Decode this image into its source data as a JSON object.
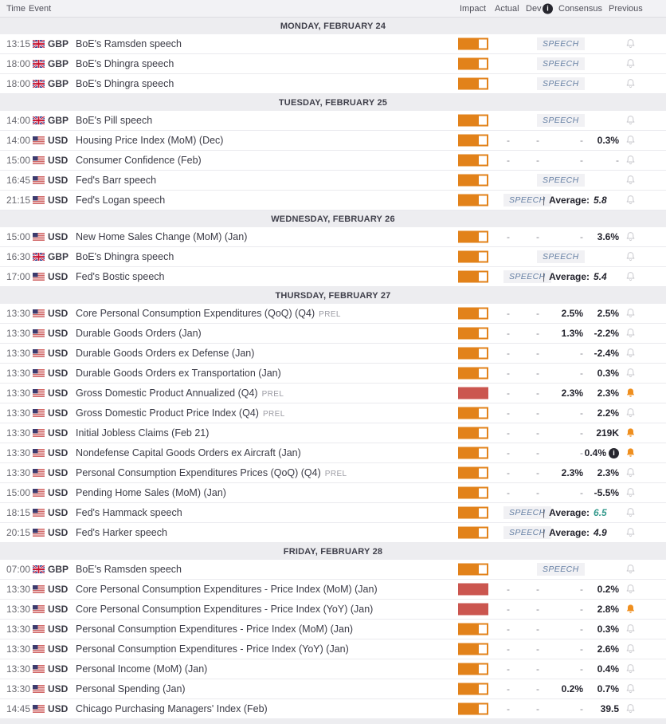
{
  "header": {
    "time": "Time",
    "event": "Event",
    "impact": "Impact",
    "actual": "Actual",
    "dev": "Dev",
    "dev_info_icon": "i",
    "consensus": "Consensus",
    "previous": "Previous"
  },
  "labels": {
    "speech": "SPEECH",
    "average": "Average:",
    "pipe": "|",
    "info_icon": "i"
  },
  "colors": {
    "impact_medium_orange": "#e2821a",
    "impact_high_red": "#cb564f",
    "bell_active_orange": "#ef8f1f",
    "speech_badge_blue": "#6680a4",
    "average_teal": "#359a8d"
  },
  "days": [
    {
      "label": "MONDAY, FEBRUARY 24",
      "rows": [
        {
          "time": "13:15",
          "flag": "gb",
          "currency": "GBP",
          "event": "BoE's Ramsden speech",
          "suffix": "",
          "impact": "medium",
          "kind": "speech",
          "average": "",
          "average_color": "",
          "bell": "gray"
        },
        {
          "time": "18:00",
          "flag": "gb",
          "currency": "GBP",
          "event": "BoE's Dhingra speech",
          "suffix": "",
          "impact": "medium",
          "kind": "speech",
          "average": "",
          "average_color": "",
          "bell": "gray"
        },
        {
          "time": "18:00",
          "flag": "gb",
          "currency": "GBP",
          "event": "BoE's Dhingra speech",
          "suffix": "",
          "impact": "medium",
          "kind": "speech",
          "average": "",
          "average_color": "",
          "bell": "gray"
        }
      ]
    },
    {
      "label": "TUESDAY, FEBRUARY 25",
      "rows": [
        {
          "time": "14:00",
          "flag": "gb",
          "currency": "GBP",
          "event": "BoE's Pill speech",
          "suffix": "",
          "impact": "medium",
          "kind": "speech",
          "average": "",
          "average_color": "",
          "bell": "gray"
        },
        {
          "time": "14:00",
          "flag": "us",
          "currency": "USD",
          "event": "Housing Price Index (MoM) (Dec)",
          "suffix": "",
          "impact": "medium",
          "kind": "data",
          "actual": "-",
          "dev": "-",
          "consensus": "-",
          "previous": "0.3%",
          "previous_info": false,
          "bell": "gray"
        },
        {
          "time": "15:00",
          "flag": "us",
          "currency": "USD",
          "event": "Consumer Confidence (Feb)",
          "suffix": "",
          "impact": "medium",
          "kind": "data",
          "actual": "-",
          "dev": "-",
          "consensus": "-",
          "previous": "-",
          "previous_info": false,
          "bell": "gray"
        },
        {
          "time": "16:45",
          "flag": "us",
          "currency": "USD",
          "event": "Fed's Barr speech",
          "suffix": "",
          "impact": "medium",
          "kind": "speech",
          "average": "",
          "average_color": "",
          "bell": "gray"
        },
        {
          "time": "21:15",
          "flag": "us",
          "currency": "USD",
          "event": "Fed's Logan speech",
          "suffix": "",
          "impact": "medium",
          "kind": "speech",
          "average": "5.8",
          "average_color": "",
          "bell": "gray"
        }
      ]
    },
    {
      "label": "WEDNESDAY, FEBRUARY 26",
      "rows": [
        {
          "time": "15:00",
          "flag": "us",
          "currency": "USD",
          "event": "New Home Sales Change (MoM) (Jan)",
          "suffix": "",
          "impact": "medium",
          "kind": "data",
          "actual": "-",
          "dev": "-",
          "consensus": "-",
          "previous": "3.6%",
          "previous_info": false,
          "bell": "gray"
        },
        {
          "time": "16:30",
          "flag": "gb",
          "currency": "GBP",
          "event": "BoE's Dhingra speech",
          "suffix": "",
          "impact": "medium",
          "kind": "speech",
          "average": "",
          "average_color": "",
          "bell": "gray"
        },
        {
          "time": "17:00",
          "flag": "us",
          "currency": "USD",
          "event": "Fed's Bostic speech",
          "suffix": "",
          "impact": "medium",
          "kind": "speech",
          "average": "5.4",
          "average_color": "",
          "bell": "gray"
        }
      ]
    },
    {
      "label": "THURSDAY, FEBRUARY 27",
      "rows": [
        {
          "time": "13:30",
          "flag": "us",
          "currency": "USD",
          "event": "Core Personal Consumption Expenditures (QoQ) (Q4)",
          "suffix": "PREL",
          "impact": "medium",
          "kind": "data",
          "actual": "-",
          "dev": "-",
          "consensus": "2.5%",
          "previous": "2.5%",
          "previous_info": false,
          "bell": "gray"
        },
        {
          "time": "13:30",
          "flag": "us",
          "currency": "USD",
          "event": "Durable Goods Orders (Jan)",
          "suffix": "",
          "impact": "medium",
          "kind": "data",
          "actual": "-",
          "dev": "-",
          "consensus": "1.3%",
          "previous": "-2.2%",
          "previous_info": false,
          "bell": "gray"
        },
        {
          "time": "13:30",
          "flag": "us",
          "currency": "USD",
          "event": "Durable Goods Orders ex Defense (Jan)",
          "suffix": "",
          "impact": "medium",
          "kind": "data",
          "actual": "-",
          "dev": "-",
          "consensus": "-",
          "previous": "-2.4%",
          "previous_info": false,
          "bell": "gray"
        },
        {
          "time": "13:30",
          "flag": "us",
          "currency": "USD",
          "event": "Durable Goods Orders ex Transportation (Jan)",
          "suffix": "",
          "impact": "medium",
          "kind": "data",
          "actual": "-",
          "dev": "-",
          "consensus": "-",
          "previous": "0.3%",
          "previous_info": false,
          "bell": "gray"
        },
        {
          "time": "13:30",
          "flag": "us",
          "currency": "USD",
          "event": "Gross Domestic Product Annualized (Q4)",
          "suffix": "PREL",
          "impact": "high",
          "kind": "data",
          "actual": "-",
          "dev": "-",
          "consensus": "2.3%",
          "previous": "2.3%",
          "previous_info": false,
          "bell": "orange"
        },
        {
          "time": "13:30",
          "flag": "us",
          "currency": "USD",
          "event": "Gross Domestic Product Price Index (Q4)",
          "suffix": "PREL",
          "impact": "medium",
          "kind": "data",
          "actual": "-",
          "dev": "-",
          "consensus": "-",
          "previous": "2.2%",
          "previous_info": false,
          "bell": "gray"
        },
        {
          "time": "13:30",
          "flag": "us",
          "currency": "USD",
          "event": "Initial Jobless Claims (Feb 21)",
          "suffix": "",
          "impact": "medium",
          "kind": "data",
          "actual": "-",
          "dev": "-",
          "consensus": "-",
          "previous": "219K",
          "previous_info": false,
          "bell": "orange"
        },
        {
          "time": "13:30",
          "flag": "us",
          "currency": "USD",
          "event": "Nondefense Capital Goods Orders ex Aircraft (Jan)",
          "suffix": "",
          "impact": "medium",
          "kind": "data",
          "actual": "-",
          "dev": "-",
          "consensus": "-",
          "previous": "0.4%",
          "previous_info": true,
          "bell": "orange"
        },
        {
          "time": "13:30",
          "flag": "us",
          "currency": "USD",
          "event": "Personal Consumption Expenditures Prices (QoQ) (Q4)",
          "suffix": "PREL",
          "impact": "medium",
          "kind": "data",
          "actual": "-",
          "dev": "-",
          "consensus": "2.3%",
          "previous": "2.3%",
          "previous_info": false,
          "bell": "gray"
        },
        {
          "time": "15:00",
          "flag": "us",
          "currency": "USD",
          "event": "Pending Home Sales (MoM) (Jan)",
          "suffix": "",
          "impact": "medium",
          "kind": "data",
          "actual": "-",
          "dev": "-",
          "consensus": "-",
          "previous": "-5.5%",
          "previous_info": false,
          "bell": "gray"
        },
        {
          "time": "18:15",
          "flag": "us",
          "currency": "USD",
          "event": "Fed's Hammack speech",
          "suffix": "",
          "impact": "medium",
          "kind": "speech",
          "average": "6.5",
          "average_color": "average_teal",
          "bell": "gray"
        },
        {
          "time": "20:15",
          "flag": "us",
          "currency": "USD",
          "event": "Fed's Harker speech",
          "suffix": "",
          "impact": "medium",
          "kind": "speech",
          "average": "4.9",
          "average_color": "",
          "bell": "gray"
        }
      ]
    },
    {
      "label": "FRIDAY, FEBRUARY 28",
      "rows": [
        {
          "time": "07:00",
          "flag": "gb",
          "currency": "GBP",
          "event": "BoE's Ramsden speech",
          "suffix": "",
          "impact": "medium",
          "kind": "speech",
          "average": "",
          "average_color": "",
          "bell": "gray"
        },
        {
          "time": "13:30",
          "flag": "us",
          "currency": "USD",
          "event": "Core Personal Consumption Expenditures - Price Index (MoM) (Jan)",
          "suffix": "",
          "impact": "high",
          "kind": "data",
          "actual": "-",
          "dev": "-",
          "consensus": "-",
          "previous": "0.2%",
          "previous_info": false,
          "bell": "gray"
        },
        {
          "time": "13:30",
          "flag": "us",
          "currency": "USD",
          "event": "Core Personal Consumption Expenditures - Price Index (YoY) (Jan)",
          "suffix": "",
          "impact": "high",
          "kind": "data",
          "actual": "-",
          "dev": "-",
          "consensus": "-",
          "previous": "2.8%",
          "previous_info": false,
          "bell": "orange"
        },
        {
          "time": "13:30",
          "flag": "us",
          "currency": "USD",
          "event": "Personal Consumption Expenditures - Price Index (MoM) (Jan)",
          "suffix": "",
          "impact": "medium",
          "kind": "data",
          "actual": "-",
          "dev": "-",
          "consensus": "-",
          "previous": "0.3%",
          "previous_info": false,
          "bell": "gray"
        },
        {
          "time": "13:30",
          "flag": "us",
          "currency": "USD",
          "event": "Personal Consumption Expenditures - Price Index (YoY) (Jan)",
          "suffix": "",
          "impact": "medium",
          "kind": "data",
          "actual": "-",
          "dev": "-",
          "consensus": "-",
          "previous": "2.6%",
          "previous_info": false,
          "bell": "gray"
        },
        {
          "time": "13:30",
          "flag": "us",
          "currency": "USD",
          "event": "Personal Income (MoM) (Jan)",
          "suffix": "",
          "impact": "medium",
          "kind": "data",
          "actual": "-",
          "dev": "-",
          "consensus": "-",
          "previous": "0.4%",
          "previous_info": false,
          "bell": "gray"
        },
        {
          "time": "13:30",
          "flag": "us",
          "currency": "USD",
          "event": "Personal Spending (Jan)",
          "suffix": "",
          "impact": "medium",
          "kind": "data",
          "actual": "-",
          "dev": "-",
          "consensus": "0.2%",
          "previous": "0.7%",
          "previous_info": false,
          "bell": "gray"
        },
        {
          "time": "14:45",
          "flag": "us",
          "currency": "USD",
          "event": "Chicago Purchasing Managers' Index (Feb)",
          "suffix": "",
          "impact": "medium",
          "kind": "data",
          "actual": "-",
          "dev": "-",
          "consensus": "-",
          "previous": "39.5",
          "previous_info": false,
          "bell": "gray"
        }
      ]
    }
  ]
}
